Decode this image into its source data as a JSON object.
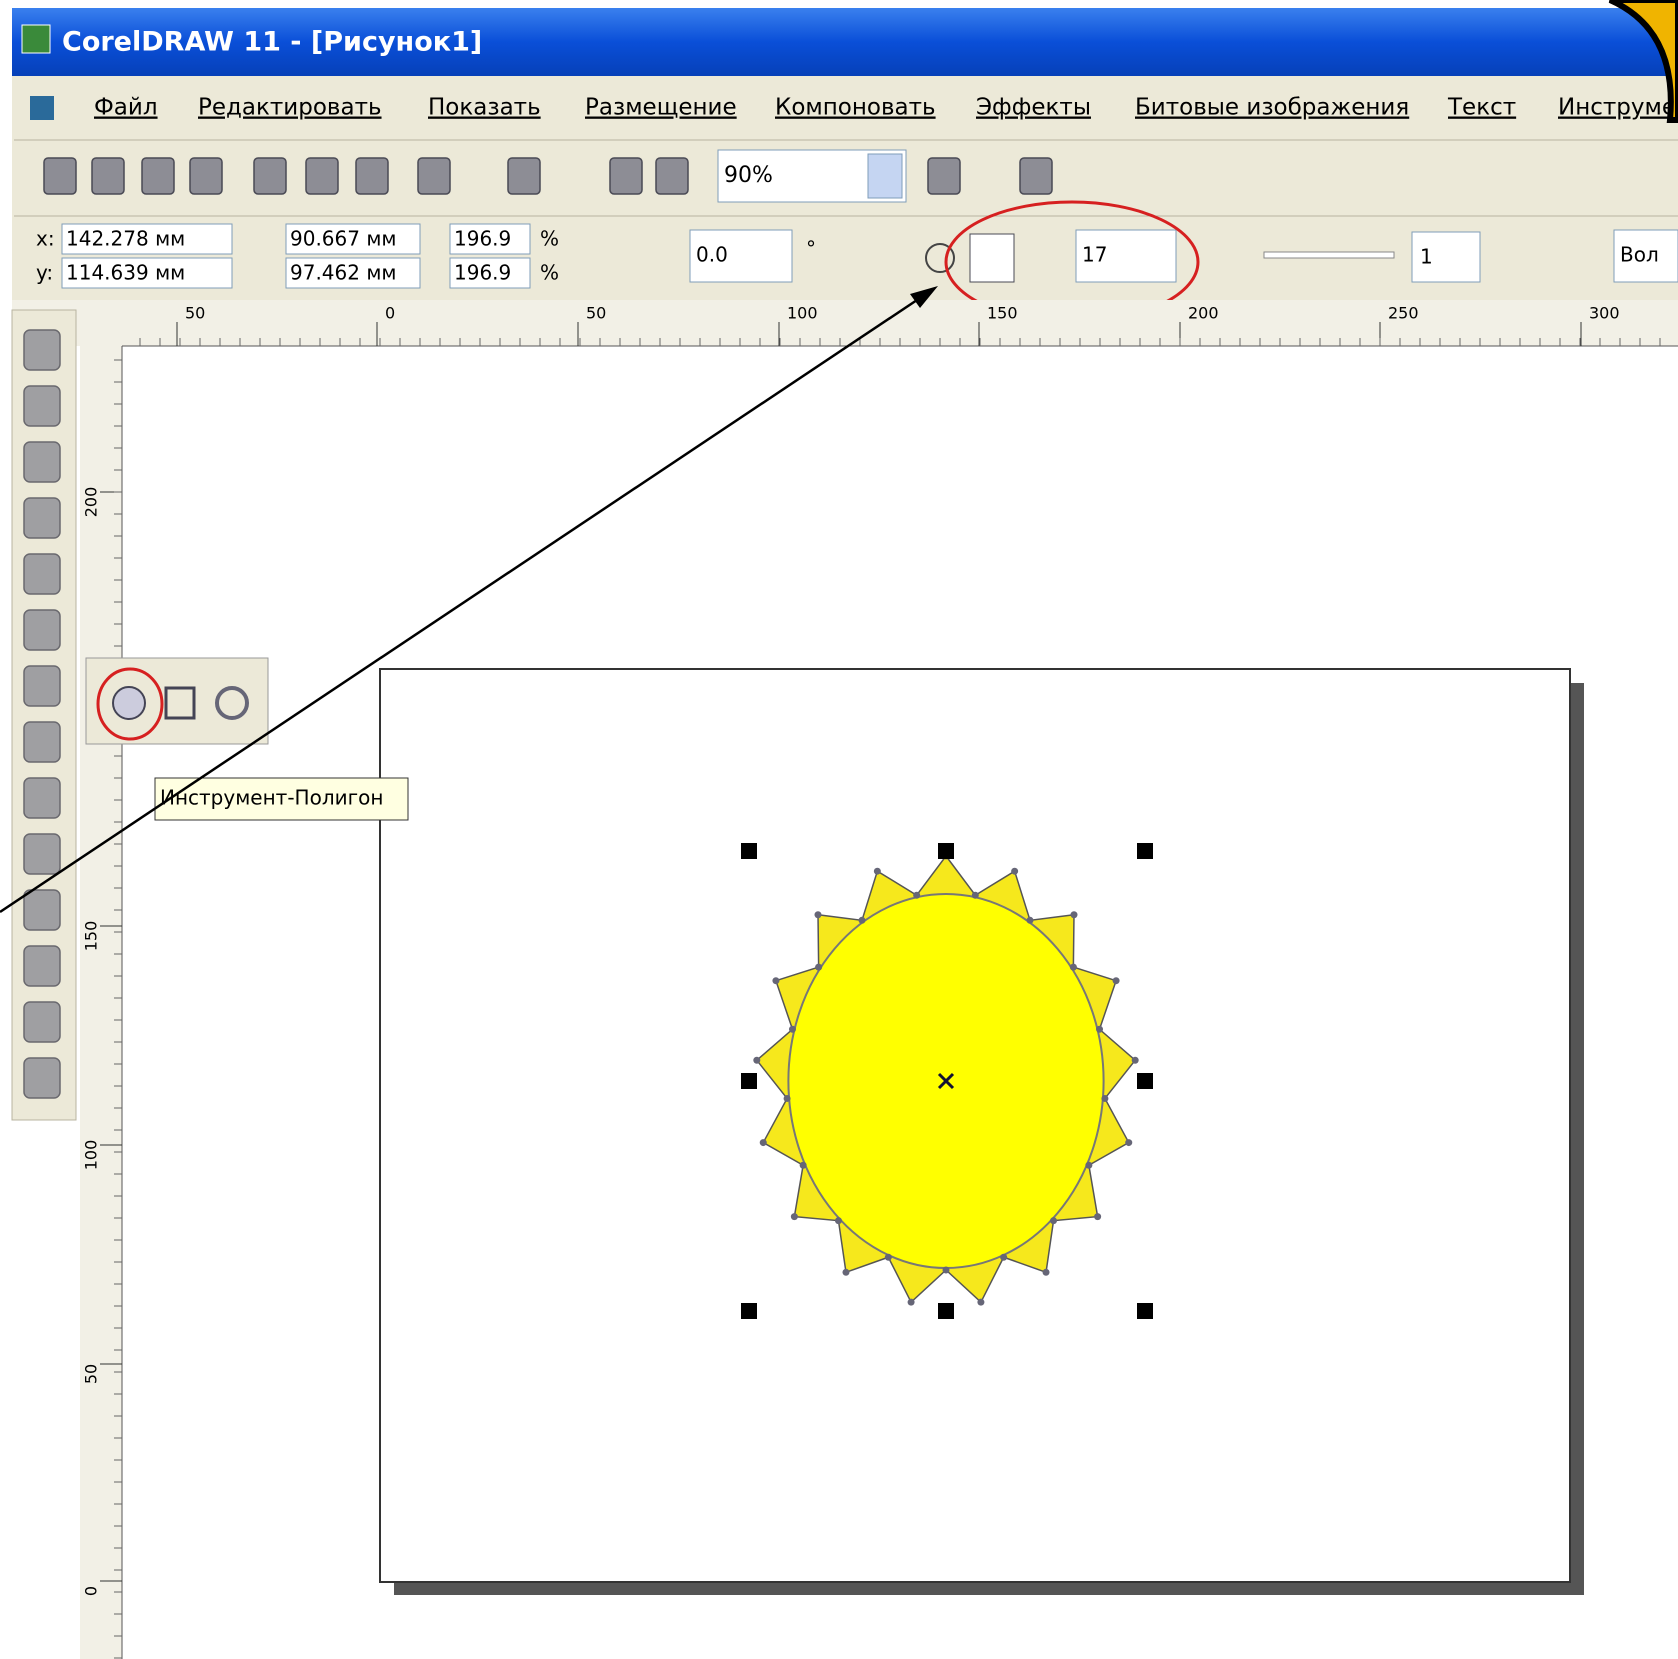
{
  "window": {
    "title": "CorelDRAW 11 - [Рисунок1]"
  },
  "menu": [
    "Файл",
    "Редактировать",
    "Показать",
    "Размещение",
    "Компоновать",
    "Эффекты",
    "Битовые изображения",
    "Текст",
    "Инструме"
  ],
  "standard_toolbar": {
    "zoom": "90%"
  },
  "property_bar": {
    "x_label": "x:",
    "x": "142.278 мм",
    "y_label": "y:",
    "y": "114.639 мм",
    "width": "90.667 мм",
    "height": "97.462 мм",
    "scale_x": "196.9",
    "scale_y": "196.9",
    "percent_x": "%",
    "percent_y": "%",
    "rotation": "0.0",
    "degree": "°",
    "star_points": 17,
    "sharpness": 1,
    "outline": "Вол"
  },
  "rulers": {
    "horizontal": [
      "50",
      "0",
      "50",
      "100",
      "150",
      "200",
      "250",
      "300"
    ],
    "vertical": [
      "200",
      "150",
      "100",
      "50",
      "0"
    ]
  },
  "tooltip": "Инструмент-Полигон"
}
